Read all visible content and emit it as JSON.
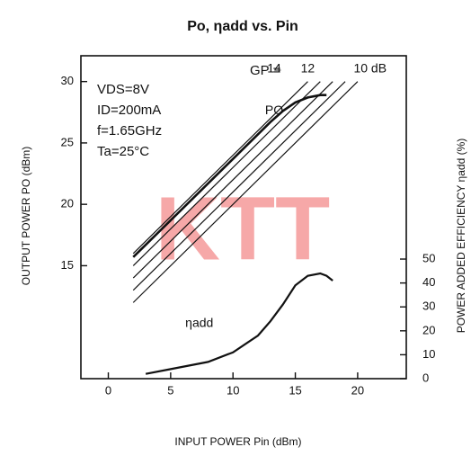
{
  "chart_data": {
    "type": "line",
    "title": "Po, ηadd vs. Pin",
    "x_label": "INPUT POWER Pin (dBm)",
    "y_label": "OUTPUT POWER PO (dBm)",
    "y2_label": "POWER ADDED EFFICIENCY ηadd (%)",
    "watermark": "KTT",
    "annotations": [
      "VDS=8V",
      "ID=200mA",
      "f=1.65GHz",
      "Ta=25°C",
      "GP ="
    ],
    "xlim": [
      -2.2,
      23.9
    ],
    "xticks": [
      0,
      5,
      10,
      15,
      20
    ],
    "ylim": [
      5.8,
      32.1
    ],
    "yticks": [
      15,
      20,
      25,
      30
    ],
    "y2lim": [
      0,
      135
    ],
    "y2ticks": [
      0,
      10,
      20,
      30,
      40,
      50
    ],
    "series": [
      {
        "name": "PO",
        "color": "#111111",
        "width": 2.6,
        "x": [
          2,
          5,
          10,
          13,
          14,
          15,
          16,
          17,
          17.5
        ],
        "values": [
          15.7,
          18.7,
          23.7,
          26.7,
          27.6,
          28.3,
          28.7,
          28.9,
          28.9
        ]
      },
      {
        "name": "14",
        "color": "#111111",
        "x": [
          2,
          16
        ],
        "values": [
          16,
          30
        ]
      },
      {
        "color": "#111111",
        "x": [
          2,
          17
        ],
        "values": [
          15,
          30
        ]
      },
      {
        "name": "12",
        "color": "#111111",
        "x": [
          2,
          18
        ],
        "values": [
          14,
          30
        ]
      },
      {
        "color": "#111111",
        "x": [
          2,
          19
        ],
        "values": [
          13,
          30
        ]
      },
      {
        "name": "10 dB",
        "color": "#111111",
        "x": [
          2,
          20
        ],
        "values": [
          12,
          30
        ]
      },
      {
        "name": "ηadd",
        "color": "#111111",
        "width": 2.2,
        "axis": "y2",
        "x": [
          3,
          5,
          8,
          10,
          12,
          13,
          14,
          15,
          16,
          17,
          17.5,
          18
        ],
        "values": [
          2,
          4,
          7,
          11,
          18,
          24,
          31,
          39,
          43,
          44,
          43,
          41
        ]
      }
    ]
  }
}
